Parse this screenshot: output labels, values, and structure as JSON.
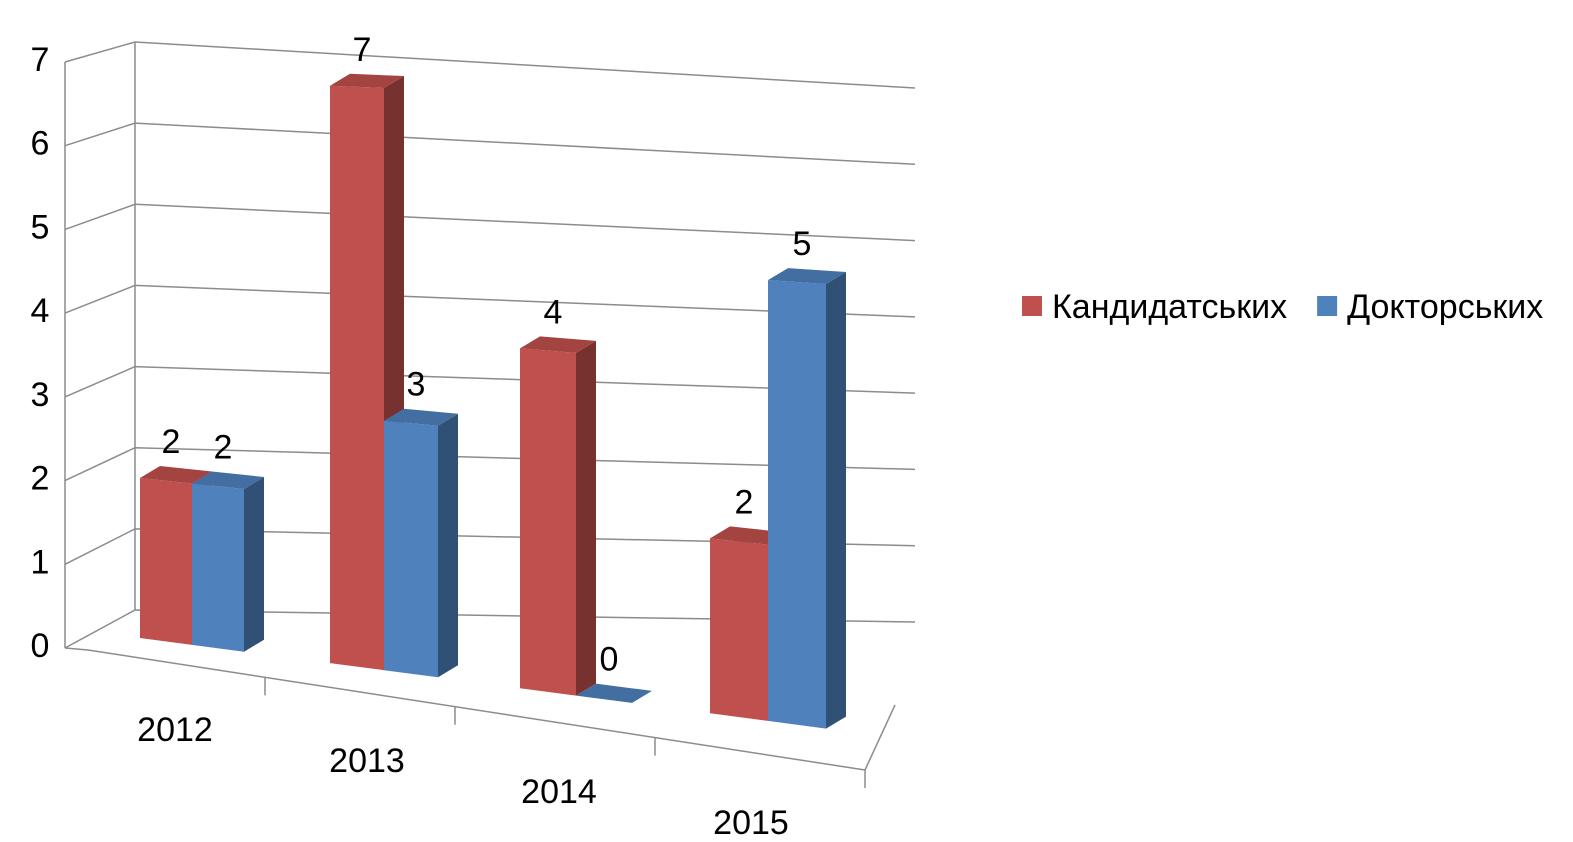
{
  "chart_data": {
    "type": "bar3d",
    "categories": [
      "2012",
      "2013",
      "2014",
      "2015"
    ],
    "series": [
      {
        "name": "Кандидатських",
        "color": "#c0504d",
        "values": [
          2,
          7,
          4,
          2
        ]
      },
      {
        "name": "Докторських",
        "color": "#4f81bd",
        "values": [
          2,
          3,
          0,
          5
        ]
      }
    ],
    "ylim": [
      0,
      7
    ],
    "yticks": [
      0,
      1,
      2,
      3,
      4,
      5,
      6,
      7
    ],
    "grid": true,
    "legend": "right"
  }
}
